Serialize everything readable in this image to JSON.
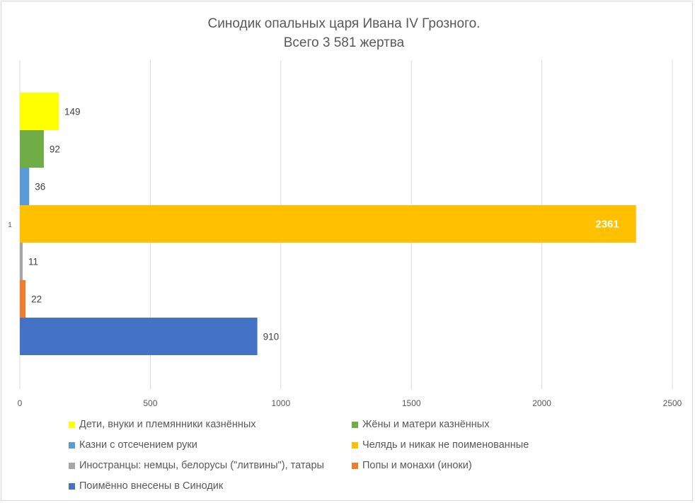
{
  "chart_data": {
    "type": "bar",
    "orientation": "horizontal",
    "title": [
      "Синодик опальных царя Ивана IV Грозного.",
      "Всего 3 581 жертва"
    ],
    "categories": [
      "1"
    ],
    "xlim": [
      0,
      2500
    ],
    "x_ticks": [
      "0",
      "500",
      "1000",
      "1500",
      "2000",
      "2500"
    ],
    "grid": "vertical",
    "legend_position": "bottom",
    "series": [
      {
        "name": "Дети, внуки и племянники казнённых",
        "value": 149,
        "label": "149",
        "color": "#ffff00"
      },
      {
        "name": "Жёны и матери казнённых",
        "value": 92,
        "label": "92",
        "color": "#70ad47"
      },
      {
        "name": "Казни с отсечением руки",
        "value": 36,
        "label": "36",
        "color": "#5b9bd5"
      },
      {
        "name": "Челядь и никак не поименованные",
        "value": 2361,
        "label": "2361",
        "color": "#ffc000"
      },
      {
        "name": "Иностранцы: немцы, белорусы (\"литвины\"), татары",
        "value": 11,
        "label": "11",
        "color": "#a5a5a5"
      },
      {
        "name": "Попы и монахи (иноки)",
        "value": 22,
        "label": "22",
        "color": "#ed7d31"
      },
      {
        "name": "Поимённо внесены в Синодик",
        "value": 910,
        "label": "910",
        "color": "#4472c4"
      }
    ]
  }
}
